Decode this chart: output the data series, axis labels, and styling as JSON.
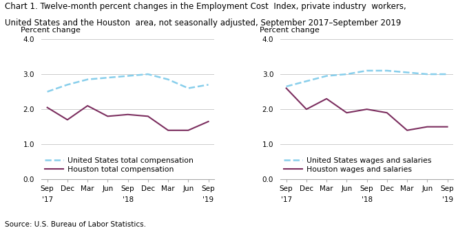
{
  "title_line1": "Chart 1. Twelve-month percent changes in the Employment Cost  Index, private industry  workers,",
  "title_line2": "United States and the Houston  area, not seasonally adjusted, September 2017–September 2019",
  "source": "Source: U.S. Bureau of Labor Statistics.",
  "ylabel": "Percent change",
  "ylim": [
    0.0,
    4.0
  ],
  "yticks": [
    0.0,
    1.0,
    2.0,
    3.0,
    4.0
  ],
  "chart1": {
    "us_total": [
      2.5,
      2.7,
      2.85,
      2.9,
      2.95,
      3.0,
      2.85,
      2.6,
      2.7
    ],
    "houston_total": [
      2.05,
      1.7,
      2.1,
      1.8,
      1.85,
      1.8,
      1.4,
      1.4,
      1.65
    ],
    "legend1": "United States total compensation",
    "legend2": "Houston total compensation"
  },
  "chart2": {
    "us_wages": [
      2.65,
      2.8,
      2.95,
      3.0,
      3.1,
      3.1,
      3.05,
      3.0,
      3.0
    ],
    "houston_wages": [
      2.6,
      2.0,
      2.3,
      1.9,
      2.0,
      1.9,
      1.4,
      1.5,
      1.5
    ],
    "legend1": "United States wages and salaries",
    "legend2": "Houston wages and salaries"
  },
  "us_color": "#87CEEB",
  "houston_color": "#7B2D5E",
  "us_linewidth": 1.8,
  "houston_linewidth": 1.5,
  "title_fontsize": 8.5,
  "axis_label_fontsize": 8,
  "tick_fontsize": 7.5,
  "legend_fontsize": 7.8,
  "source_fontsize": 7.5
}
